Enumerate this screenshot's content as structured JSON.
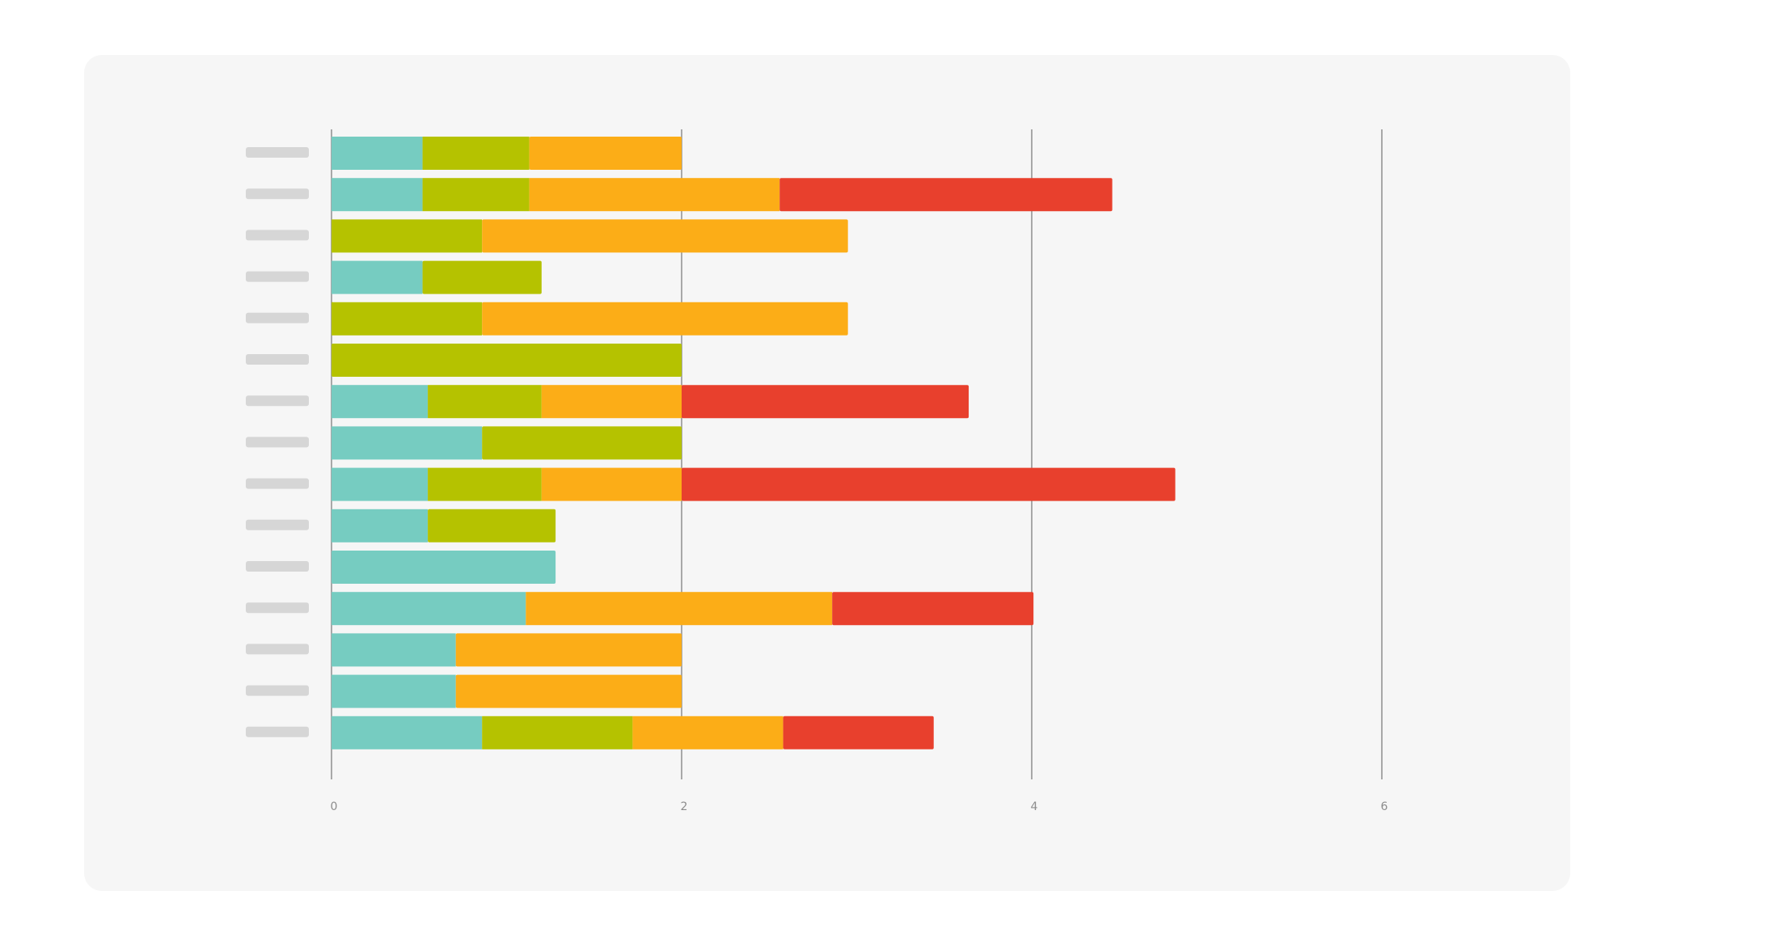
{
  "chart_data": {
    "type": "bar",
    "orientation": "horizontal",
    "stacked": true,
    "title": "",
    "xlabel": "",
    "ylabel": "",
    "xlim": [
      0,
      7
    ],
    "xticks": [
      0,
      2,
      4,
      6
    ],
    "xtick_labels": [
      "0",
      "2",
      "4",
      "6"
    ],
    "grid": true,
    "legend": "none",
    "category_labels": "placeholder-bars",
    "categories": [
      "",
      "",
      "",
      "",
      "",
      "",
      "",
      "",
      "",
      "",
      "",
      "",
      "",
      "",
      ""
    ],
    "series": [
      {
        "color": "#76ccc1",
        "values": [
          0.52,
          0.52,
          0,
          0.52,
          0,
          0,
          0.55,
          0.86,
          0.55,
          0.55,
          1.28,
          1.11,
          0.71,
          0.71,
          0.86
        ]
      },
      {
        "color": "#b5c200",
        "values": [
          0.61,
          0.61,
          0.86,
          0.68,
          0.86,
          2.0,
          0.65,
          1.14,
          0.65,
          0.73,
          0,
          0,
          0,
          0,
          0.86
        ]
      },
      {
        "color": "#fcad17",
        "values": [
          0.87,
          1.43,
          2.09,
          0,
          2.09,
          0,
          0.8,
          0,
          0.8,
          0,
          0,
          1.75,
          1.29,
          1.29,
          0.86
        ]
      },
      {
        "color": "#e8402d",
        "values": [
          0,
          1.9,
          0,
          0,
          0,
          0,
          1.64,
          0,
          2.82,
          0,
          0,
          1.15,
          0,
          0,
          0.86
        ]
      }
    ]
  }
}
